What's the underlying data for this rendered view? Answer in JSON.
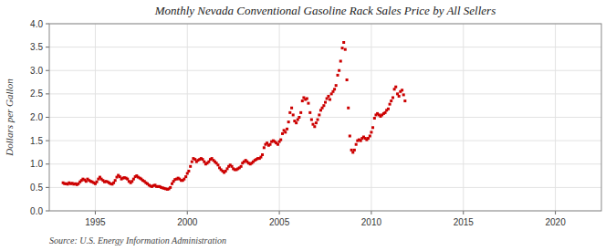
{
  "chart_data": {
    "type": "scatter",
    "title": "Monthly Nevada Conventional Gasoline Rack Sales Price by All Sellers",
    "y_label": "Dollars per Gallon",
    "annotations": [
      "Source: U.S. Energy Information Administration"
    ],
    "color": "#cc0000",
    "marker": "square",
    "grid": true,
    "xlim": [
      1992.5,
      2022.5
    ],
    "ylim": [
      0.0,
      4.0
    ],
    "xticks": [
      1995,
      2000,
      2005,
      2010,
      2015,
      2020
    ],
    "yticks": [
      {
        "value": 0.0,
        "label": "0.0"
      },
      0.5,
      {
        "value": 1.0,
        "label": "1.0"
      },
      1.5,
      {
        "value": 2.0,
        "label": "2.0"
      },
      2.5,
      {
        "value": 3.0,
        "label": "3.0"
      },
      3.5,
      {
        "value": 4.0,
        "label": "4.0"
      }
    ],
    "x": [
      1993.25,
      1993.33,
      1993.42,
      1993.5,
      1993.58,
      1993.67,
      1993.75,
      1993.83,
      1993.92,
      1994.0,
      1994.08,
      1994.17,
      1994.25,
      1994.33,
      1994.42,
      1994.5,
      1994.58,
      1994.67,
      1994.75,
      1994.83,
      1994.92,
      1995.0,
      1995.08,
      1995.17,
      1995.25,
      1995.33,
      1995.42,
      1995.5,
      1995.58,
      1995.67,
      1995.75,
      1995.83,
      1995.92,
      1996.0,
      1996.08,
      1996.17,
      1996.25,
      1996.33,
      1996.42,
      1996.5,
      1996.58,
      1996.67,
      1996.75,
      1996.83,
      1996.92,
      1997.0,
      1997.08,
      1997.17,
      1997.25,
      1997.33,
      1997.42,
      1997.5,
      1997.58,
      1997.67,
      1997.75,
      1997.83,
      1997.92,
      1998.0,
      1998.08,
      1998.17,
      1998.25,
      1998.33,
      1998.42,
      1998.5,
      1998.58,
      1998.67,
      1998.75,
      1998.83,
      1998.92,
      1999.0,
      1999.08,
      1999.17,
      1999.25,
      1999.33,
      1999.42,
      1999.5,
      1999.58,
      1999.67,
      1999.75,
      1999.83,
      1999.92,
      2000.0,
      2000.08,
      2000.17,
      2000.25,
      2000.33,
      2000.42,
      2000.5,
      2000.58,
      2000.67,
      2000.75,
      2000.83,
      2000.92,
      2001.0,
      2001.08,
      2001.17,
      2001.25,
      2001.33,
      2001.42,
      2001.5,
      2001.58,
      2001.67,
      2001.75,
      2001.83,
      2001.92,
      2002.0,
      2002.08,
      2002.17,
      2002.25,
      2002.33,
      2002.42,
      2002.5,
      2002.58,
      2002.67,
      2002.75,
      2002.83,
      2002.92,
      2003.0,
      2003.08,
      2003.17,
      2003.25,
      2003.33,
      2003.42,
      2003.5,
      2003.58,
      2003.67,
      2003.75,
      2003.83,
      2003.92,
      2004.0,
      2004.08,
      2004.17,
      2004.25,
      2004.33,
      2004.42,
      2004.5,
      2004.58,
      2004.67,
      2004.75,
      2004.83,
      2004.92,
      2005.0,
      2005.08,
      2005.17,
      2005.25,
      2005.33,
      2005.42,
      2005.5,
      2005.58,
      2005.67,
      2005.75,
      2005.83,
      2005.92,
      2006.0,
      2006.08,
      2006.17,
      2006.25,
      2006.33,
      2006.42,
      2006.5,
      2006.58,
      2006.67,
      2006.75,
      2006.83,
      2006.92,
      2007.0,
      2007.08,
      2007.17,
      2007.25,
      2007.33,
      2007.42,
      2007.5,
      2007.58,
      2007.67,
      2007.75,
      2007.83,
      2007.92,
      2008.0,
      2008.08,
      2008.17,
      2008.25,
      2008.33,
      2008.42,
      2008.5,
      2008.58,
      2008.67,
      2008.75,
      2008.83,
      2008.92,
      2009.0,
      2009.08,
      2009.17,
      2009.25,
      2009.33,
      2009.42,
      2009.5,
      2009.58,
      2009.67,
      2009.75,
      2009.83,
      2009.92,
      2010.0,
      2010.08,
      2010.17,
      2010.25,
      2010.33,
      2010.42,
      2010.5,
      2010.58,
      2010.67,
      2010.75,
      2010.83,
      2010.92,
      2011.0,
      2011.08,
      2011.17,
      2011.25,
      2011.33,
      2011.42,
      2011.5,
      2011.58,
      2011.67,
      2011.75,
      2011.83
    ],
    "values": [
      0.6,
      0.58,
      0.58,
      0.57,
      0.6,
      0.58,
      0.59,
      0.57,
      0.58,
      0.56,
      0.58,
      0.62,
      0.65,
      0.68,
      0.66,
      0.63,
      0.68,
      0.65,
      0.63,
      0.62,
      0.6,
      0.58,
      0.62,
      0.68,
      0.72,
      0.68,
      0.65,
      0.62,
      0.63,
      0.62,
      0.6,
      0.58,
      0.57,
      0.6,
      0.65,
      0.72,
      0.76,
      0.73,
      0.68,
      0.7,
      0.71,
      0.7,
      0.68,
      0.63,
      0.6,
      0.63,
      0.68,
      0.73,
      0.75,
      0.72,
      0.7,
      0.68,
      0.65,
      0.63,
      0.6,
      0.58,
      0.55,
      0.53,
      0.52,
      0.54,
      0.55,
      0.52,
      0.52,
      0.52,
      0.5,
      0.49,
      0.48,
      0.47,
      0.46,
      0.47,
      0.5,
      0.58,
      0.63,
      0.67,
      0.68,
      0.7,
      0.68,
      0.65,
      0.65,
      0.68,
      0.73,
      0.8,
      0.85,
      0.95,
      1.05,
      1.12,
      1.1,
      1.05,
      1.08,
      1.1,
      1.12,
      1.1,
      1.05,
      1.0,
      1.02,
      1.05,
      1.1,
      1.12,
      1.08,
      1.05,
      1.02,
      0.98,
      0.92,
      0.88,
      0.85,
      0.82,
      0.85,
      0.9,
      0.95,
      0.98,
      0.95,
      0.9,
      0.88,
      0.88,
      0.9,
      0.92,
      0.95,
      1.02,
      1.05,
      1.08,
      1.05,
      1.02,
      1.0,
      1.02,
      1.05,
      1.08,
      1.1,
      1.12,
      1.12,
      1.15,
      1.2,
      1.35,
      1.42,
      1.45,
      1.4,
      1.42,
      1.48,
      1.5,
      1.48,
      1.45,
      1.42,
      1.48,
      1.52,
      1.65,
      1.72,
      1.68,
      1.75,
      1.9,
      2.1,
      2.2,
      2.05,
      1.92,
      1.88,
      1.95,
      2.0,
      2.1,
      2.35,
      2.42,
      2.38,
      2.4,
      2.3,
      2.1,
      1.95,
      1.85,
      1.8,
      1.88,
      1.95,
      2.05,
      2.15,
      2.2,
      2.25,
      2.32,
      2.4,
      2.45,
      2.38,
      2.5,
      2.55,
      2.6,
      2.68,
      2.9,
      3.0,
      3.2,
      3.48,
      3.6,
      3.45,
      2.8,
      2.2,
      1.6,
      1.3,
      1.25,
      1.3,
      1.42,
      1.5,
      1.52,
      1.5,
      1.55,
      1.58,
      1.55,
      1.52,
      1.55,
      1.6,
      1.68,
      1.78,
      1.98,
      2.05,
      2.08,
      2.05,
      2.02,
      2.05,
      2.08,
      2.1,
      2.15,
      2.18,
      2.28,
      2.35,
      2.42,
      2.6,
      2.65,
      2.5,
      2.45,
      2.55,
      2.58,
      2.48,
      2.35
    ]
  }
}
